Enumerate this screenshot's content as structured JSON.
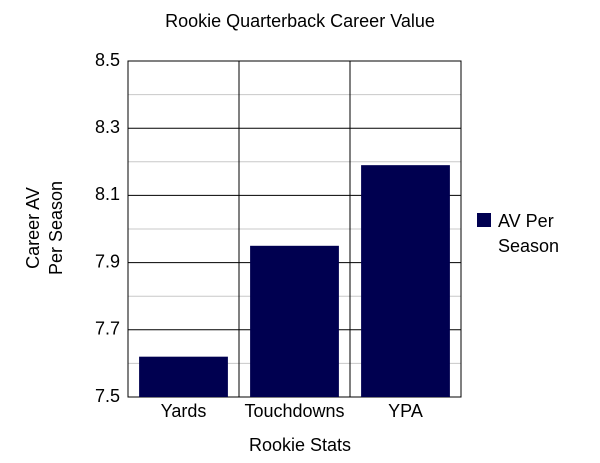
{
  "chart_data": {
    "type": "bar",
    "title": "Rookie Quarterback Career Value",
    "x_label": "Rookie Stats",
    "y_label": "Career AV Per Season",
    "categories": [
      "Yards",
      "Touchdowns",
      "YPA"
    ],
    "series": [
      {
        "name": "AV Per Season",
        "color": "#000050",
        "values": [
          7.62,
          7.95,
          8.19
        ]
      }
    ],
    "ylim": [
      7.5,
      8.5
    ],
    "yticks": [
      7.5,
      7.7,
      7.9,
      8.1,
      8.3,
      8.5
    ],
    "minor_yticks": [
      7.6,
      7.8,
      8.0,
      8.2,
      8.4
    ],
    "grid": true,
    "legend": "right"
  }
}
